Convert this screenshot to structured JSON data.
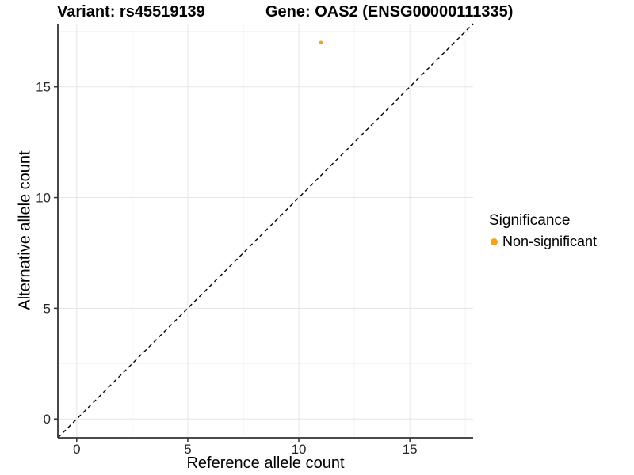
{
  "titles": {
    "variant": "Variant: rs45519139",
    "gene": "Gene: OAS2 (ENSG00000111335)"
  },
  "chart_data": {
    "type": "scatter",
    "title": "Variant: rs45519139   Gene: OAS2 (ENSG00000111335)",
    "xlabel": "Reference allele count",
    "ylabel": "Alternative allele count",
    "xlim": [
      -0.85,
      17.85
    ],
    "ylim": [
      -0.85,
      17.85
    ],
    "xticks": [
      0,
      5,
      10,
      15
    ],
    "yticks": [
      0,
      5,
      10,
      15
    ],
    "xminor": [
      2.5,
      7.5,
      12.5,
      17.5
    ],
    "yminor": [
      2.5,
      7.5,
      12.5,
      17.5
    ],
    "grid": "major and minor gridlines on white panel",
    "points": [
      {
        "x": 11,
        "y": 17,
        "significance": "Non-significant",
        "color": "#FAA01A"
      }
    ],
    "reference_line": {
      "slope": 1,
      "intercept": 0,
      "style": "dashed",
      "color": "#000000"
    },
    "legend": {
      "title": "Significance",
      "position": "right",
      "entries": [
        {
          "label": "Non-significant",
          "color": "#FAA01A"
        }
      ]
    }
  },
  "colors": {
    "axis_line": "#333333",
    "tick_label": "#262626",
    "grid_major": "#e5e5e5",
    "grid_minor": "#f2f2f2",
    "background": "#ffffff"
  }
}
